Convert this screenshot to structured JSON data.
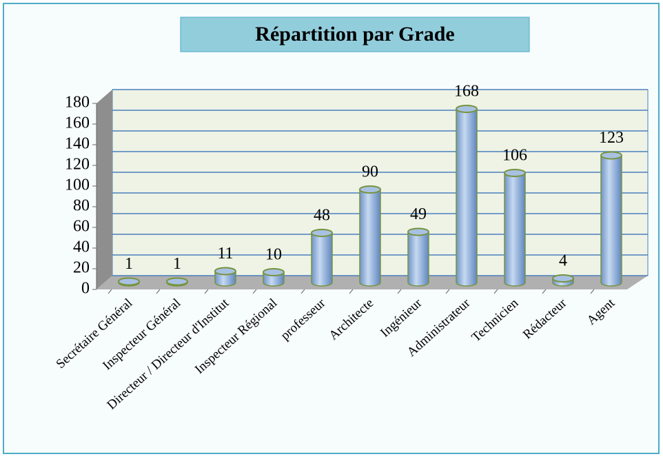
{
  "chart_data": {
    "type": "bar",
    "title": "Répartition par Grade",
    "categories": [
      "Secrétaire Général",
      "Inspecteur Général",
      "Directeur / Directeur d'Institut",
      "Inspecteur Régional",
      "professeur",
      "Architecte",
      "Ingénieur",
      "Administrateur",
      "Technicien",
      "Rédacteur",
      "Agent"
    ],
    "values": [
      1,
      1,
      11,
      10,
      48,
      90,
      49,
      168,
      106,
      4,
      123
    ],
    "color": "#95b3d7",
    "ylim": [
      0,
      180
    ],
    "yticks": [
      0,
      20,
      40,
      60,
      80,
      100,
      120,
      140,
      160,
      180
    ],
    "grid": true
  }
}
